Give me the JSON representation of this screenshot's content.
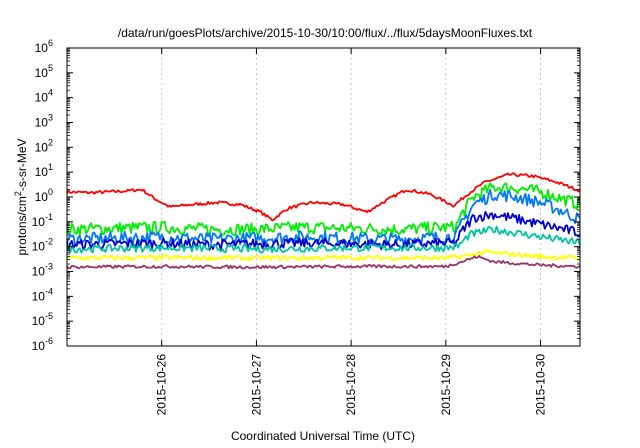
{
  "chart_data": {
    "type": "line",
    "title": "/data/run/goesPlots/archive/2015-10-30/10:00/flux/../flux/5daysMoonFluxes.txt",
    "xlabel": "Coordinated Universal Time (UTC)",
    "ylabel_parts": [
      "protons/cm",
      "2",
      "-s-sr-MeV"
    ],
    "y_scale": "log",
    "ylim": [
      1e-06,
      1000000.0
    ],
    "y_ticks": [
      {
        "value": 1e-06,
        "base": "10",
        "exp": "-6"
      },
      {
        "value": 1e-05,
        "base": "10",
        "exp": "-5"
      },
      {
        "value": 0.0001,
        "base": "10",
        "exp": "-4"
      },
      {
        "value": 0.001,
        "base": "10",
        "exp": "-3"
      },
      {
        "value": 0.01,
        "base": "10",
        "exp": "-2"
      },
      {
        "value": 0.1,
        "base": "10",
        "exp": "-1"
      },
      {
        "value": 1,
        "base": "10",
        "exp": "0"
      },
      {
        "value": 10,
        "base": "10",
        "exp": "1"
      },
      {
        "value": 100,
        "base": "10",
        "exp": "2"
      },
      {
        "value": 1000,
        "base": "10",
        "exp": "3"
      },
      {
        "value": 10000,
        "base": "10",
        "exp": "4"
      },
      {
        "value": 100000,
        "base": "10",
        "exp": "5"
      },
      {
        "value": 1000000,
        "base": "10",
        "exp": "6"
      }
    ],
    "xlim": [
      "2015-10-25T00:00",
      "2015-10-30T10:00"
    ],
    "x_ticks": [
      {
        "value": "2015-10-26",
        "label": "2015-10-26"
      },
      {
        "value": "2015-10-27",
        "label": "2015-10-27"
      },
      {
        "value": "2015-10-28",
        "label": "2015-10-28"
      },
      {
        "value": "2015-10-29",
        "label": "2015-10-29"
      },
      {
        "value": "2015-10-30",
        "label": "2015-10-30"
      }
    ],
    "grid": true,
    "legend": "none",
    "series": [
      {
        "color": "#ff0000",
        "noise": 0.06,
        "x": [
          "2015-10-25T00:00",
          "2015-10-25T06:00",
          "2015-10-25T14:00",
          "2015-10-25T19:00",
          "2015-10-25T22:00",
          "2015-10-26T02:00",
          "2015-10-26T08:00",
          "2015-10-26T14:00",
          "2015-10-26T20:00",
          "2015-10-27T01:00",
          "2015-10-27T04:00",
          "2015-10-27T08:00",
          "2015-10-27T14:00",
          "2015-10-27T22:00",
          "2015-10-28T04:00",
          "2015-10-28T08:00",
          "2015-10-28T14:00",
          "2015-10-28T20:00",
          "2015-10-29T02:00",
          "2015-10-29T06:00",
          "2015-10-29T10:00",
          "2015-10-29T16:00",
          "2015-10-29T22:00",
          "2015-10-30T04:00",
          "2015-10-30T10:00"
        ],
        "y": [
          1.6,
          1.5,
          1.7,
          2.0,
          0.9,
          0.4,
          0.5,
          0.6,
          0.5,
          0.25,
          0.12,
          0.35,
          0.6,
          0.5,
          0.25,
          0.6,
          2.0,
          1.3,
          0.45,
          1.5,
          4.0,
          8.0,
          7.0,
          4.0,
          1.8
        ]
      },
      {
        "color": "#00ee00",
        "noise": 0.25,
        "x": [
          "2015-10-25T00:00",
          "2015-10-25T12:00",
          "2015-10-26T00:00",
          "2015-10-26T12:00",
          "2015-10-27T00:00",
          "2015-10-27T12:00",
          "2015-10-28T00:00",
          "2015-10-28T12:00",
          "2015-10-29T00:00",
          "2015-10-29T02:30",
          "2015-10-29T04:00",
          "2015-10-29T07:00",
          "2015-10-29T12:00",
          "2015-10-29T18:00",
          "2015-10-30T00:00",
          "2015-10-30T06:00",
          "2015-10-30T10:00"
        ],
        "y": [
          0.05,
          0.055,
          0.06,
          0.05,
          0.05,
          0.06,
          0.055,
          0.05,
          0.06,
          0.06,
          0.2,
          1.0,
          2.5,
          2.3,
          1.6,
          0.8,
          0.5
        ]
      },
      {
        "color": "#0077ff",
        "noise": 0.25,
        "x": [
          "2015-10-25T00:00",
          "2015-10-25T12:00",
          "2015-10-26T00:00",
          "2015-10-26T12:00",
          "2015-10-27T00:00",
          "2015-10-27T12:00",
          "2015-10-28T00:00",
          "2015-10-28T12:00",
          "2015-10-29T00:00",
          "2015-10-29T02:30",
          "2015-10-29T04:00",
          "2015-10-29T07:00",
          "2015-10-29T12:00",
          "2015-10-29T18:00",
          "2015-10-30T00:00",
          "2015-10-30T06:00",
          "2015-10-30T10:00"
        ],
        "y": [
          0.02,
          0.022,
          0.025,
          0.02,
          0.022,
          0.025,
          0.022,
          0.02,
          0.025,
          0.025,
          0.08,
          0.5,
          1.3,
          1.0,
          0.6,
          0.25,
          0.12
        ]
      },
      {
        "color": "#0000cc",
        "noise": 0.2,
        "x": [
          "2015-10-25T00:00",
          "2015-10-25T12:00",
          "2015-10-26T00:00",
          "2015-10-26T12:00",
          "2015-10-27T00:00",
          "2015-10-27T12:00",
          "2015-10-28T00:00",
          "2015-10-28T12:00",
          "2015-10-29T00:00",
          "2015-10-29T02:30",
          "2015-10-29T04:00",
          "2015-10-29T07:00",
          "2015-10-29T12:00",
          "2015-10-29T18:00",
          "2015-10-30T00:00",
          "2015-10-30T06:00",
          "2015-10-30T10:00"
        ],
        "y": [
          0.012,
          0.013,
          0.014,
          0.012,
          0.013,
          0.014,
          0.013,
          0.012,
          0.014,
          0.014,
          0.04,
          0.15,
          0.2,
          0.13,
          0.08,
          0.05,
          0.035
        ]
      },
      {
        "color": "#00c4a0",
        "noise": 0.15,
        "x": [
          "2015-10-25T00:00",
          "2015-10-26T00:00",
          "2015-10-27T00:00",
          "2015-10-28T00:00",
          "2015-10-29T00:00",
          "2015-10-29T03:00",
          "2015-10-29T06:00",
          "2015-10-29T12:00",
          "2015-10-30T00:00",
          "2015-10-30T10:00"
        ],
        "y": [
          0.008,
          0.009,
          0.008,
          0.009,
          0.009,
          0.01,
          0.03,
          0.05,
          0.025,
          0.014
        ]
      },
      {
        "color": "#ffff00",
        "noise": 0.1,
        "x": [
          "2015-10-25T00:00",
          "2015-10-26T00:00",
          "2015-10-27T00:00",
          "2015-10-28T00:00",
          "2015-10-29T00:00",
          "2015-10-29T04:00",
          "2015-10-29T10:00",
          "2015-10-30T00:00",
          "2015-10-30T10:00"
        ],
        "y": [
          0.0035,
          0.0036,
          0.0035,
          0.0036,
          0.0035,
          0.004,
          0.006,
          0.004,
          0.0035
        ]
      },
      {
        "color": "#993366",
        "noise": 0.06,
        "x": [
          "2015-10-25T00:00",
          "2015-10-26T00:00",
          "2015-10-27T00:00",
          "2015-10-28T00:00",
          "2015-10-29T00:00",
          "2015-10-29T04:00",
          "2015-10-29T08:00",
          "2015-10-29T12:00",
          "2015-10-30T00:00",
          "2015-10-30T10:00"
        ],
        "y": [
          0.0015,
          0.0016,
          0.0015,
          0.0016,
          0.0016,
          0.0025,
          0.004,
          0.0025,
          0.0018,
          0.0016
        ]
      }
    ]
  }
}
